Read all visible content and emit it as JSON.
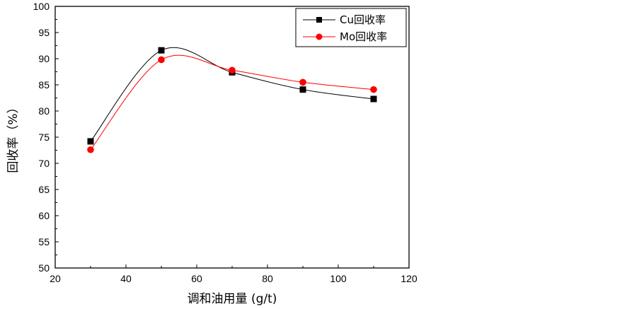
{
  "chart_data": {
    "type": "line",
    "xlabel": "调和油用量 (g/t)",
    "ylabel": "回收率（%）",
    "xlim": [
      20,
      120
    ],
    "ylim": [
      50,
      100
    ],
    "xticks": [
      20,
      40,
      60,
      80,
      100,
      120
    ],
    "yticks": [
      50,
      55,
      60,
      65,
      70,
      75,
      80,
      85,
      90,
      95,
      100
    ],
    "grid": false,
    "legend_position": "top-right",
    "x": [
      30,
      50,
      70,
      90,
      110
    ],
    "series": [
      {
        "name": "Cu回收率",
        "marker": "square",
        "color": "#000000",
        "values": [
          74.2,
          91.6,
          87.4,
          84.1,
          82.3
        ]
      },
      {
        "name": "Mo回收率",
        "marker": "circle",
        "color": "#ff0000",
        "values": [
          72.6,
          89.8,
          87.8,
          85.5,
          84.1
        ]
      }
    ]
  }
}
